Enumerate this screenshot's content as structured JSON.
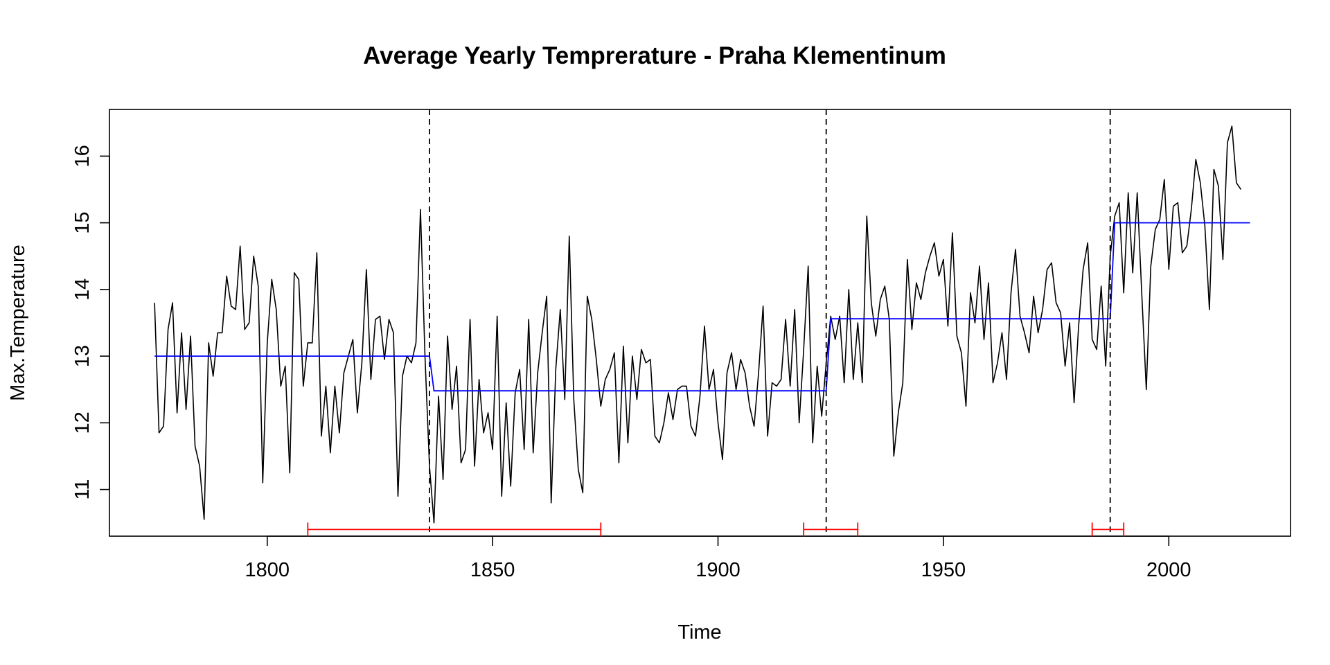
{
  "chart_data": {
    "type": "line",
    "title": "Average Yearly Temprerature - Praha Klementinum",
    "xlabel": "Time",
    "ylabel": "Max.Temperature",
    "xlim": [
      1765,
      2027
    ],
    "ylim": [
      10.3,
      16.7
    ],
    "x_ticks": [
      1800,
      1850,
      1900,
      1950,
      2000
    ],
    "x_tick_labels": [
      "1800",
      "1850",
      "1900",
      "1950",
      "2000"
    ],
    "y_ticks": [
      11,
      12,
      13,
      14,
      15,
      16
    ],
    "y_tick_labels": [
      "11",
      "12",
      "13",
      "14",
      "15",
      "16"
    ],
    "grid": false,
    "legend": "none",
    "colors": {
      "series": "#000000",
      "means": "#0000ff",
      "breakpoints": "#000000",
      "intervals": "#ff0000"
    },
    "series": [
      {
        "x_start": 1775,
        "x_step": 1,
        "values": [
          13.8,
          11.85,
          11.95,
          13.4,
          13.8,
          12.15,
          13.35,
          12.2,
          13.3,
          11.65,
          11.35,
          10.55,
          13.2,
          12.7,
          13.35,
          13.35,
          14.2,
          13.75,
          13.7,
          14.65,
          13.4,
          13.5,
          14.5,
          14.05,
          11.1,
          13.2,
          14.15,
          13.7,
          12.55,
          12.85,
          11.25,
          14.25,
          14.15,
          12.55,
          13.2,
          13.2,
          14.55,
          11.8,
          12.55,
          11.55,
          12.55,
          11.85,
          12.75,
          13.0,
          13.25,
          12.15,
          12.9,
          14.3,
          12.65,
          13.55,
          13.6,
          12.95,
          13.55,
          13.35,
          10.9,
          12.7,
          13.0,
          12.9,
          13.2,
          15.2,
          13.0,
          11.35,
          10.5,
          12.4,
          11.15,
          13.3,
          12.2,
          12.85,
          11.4,
          11.6,
          13.55,
          11.35,
          12.65,
          11.85,
          12.15,
          11.6,
          13.6,
          10.9,
          12.3,
          11.05,
          12.45,
          12.8,
          11.6,
          13.55,
          11.55,
          12.75,
          13.35,
          13.9,
          10.8,
          12.8,
          13.7,
          12.35,
          14.8,
          12.35,
          11.3,
          10.95,
          13.9,
          13.55,
          12.95,
          12.25,
          12.65,
          12.8,
          13.05,
          11.4,
          13.15,
          11.7,
          13.0,
          12.35,
          13.1,
          12.9,
          12.95,
          11.8,
          11.7,
          12.0,
          12.45,
          12.05,
          12.5,
          12.55,
          12.55,
          11.95,
          11.8,
          12.4,
          13.45,
          12.5,
          12.8,
          12.0,
          11.45,
          12.75,
          13.05,
          12.5,
          12.95,
          12.75,
          12.25,
          11.95,
          12.75,
          13.75,
          11.8,
          12.6,
          12.55,
          12.65,
          13.55,
          12.55,
          13.7,
          12.0,
          13.1,
          14.35,
          11.7,
          12.85,
          12.1,
          12.9,
          13.6,
          13.25,
          13.6,
          12.6,
          14.0,
          12.65,
          13.5,
          12.6,
          15.1,
          13.8,
          13.3,
          13.85,
          14.05,
          13.55,
          11.5,
          12.15,
          12.6,
          14.45,
          13.4,
          14.1,
          13.85,
          14.25,
          14.5,
          14.7,
          14.2,
          14.45,
          13.45,
          14.85,
          13.3,
          13.05,
          12.25,
          13.95,
          13.5,
          14.35,
          13.25,
          14.1,
          12.6,
          12.9,
          13.35,
          12.65,
          13.95,
          14.6,
          13.6,
          13.35,
          13.05,
          13.9,
          13.35,
          13.7,
          14.3,
          14.4,
          13.8,
          13.65,
          12.85,
          13.5,
          12.3,
          13.45,
          14.3,
          14.7,
          13.25,
          13.1,
          14.05,
          12.85,
          14.5,
          15.1,
          15.3,
          13.95,
          15.45,
          14.25,
          15.45,
          13.95,
          12.5,
          14.35,
          14.9,
          15.05,
          15.65,
          14.3,
          15.25,
          15.3,
          14.55,
          14.65,
          15.2,
          15.95,
          15.6,
          14.95,
          13.7,
          15.8,
          15.55,
          14.45,
          16.2,
          16.45,
          15.6,
          15.5
        ]
      }
    ],
    "segment_means": [
      {
        "from": 1775,
        "to": 1836,
        "value": 13.0
      },
      {
        "from": 1837,
        "to": 1924,
        "value": 12.48
      },
      {
        "from": 1925,
        "to": 1987,
        "value": 13.56
      },
      {
        "from": 1988,
        "to": 2018,
        "value": 15.0
      }
    ],
    "breakpoints": [
      1836,
      1924,
      1987
    ],
    "confidence_intervals": [
      {
        "from": 1809,
        "to": 1874
      },
      {
        "from": 1919,
        "to": 1931
      },
      {
        "from": 1983,
        "to": 1990
      }
    ]
  }
}
